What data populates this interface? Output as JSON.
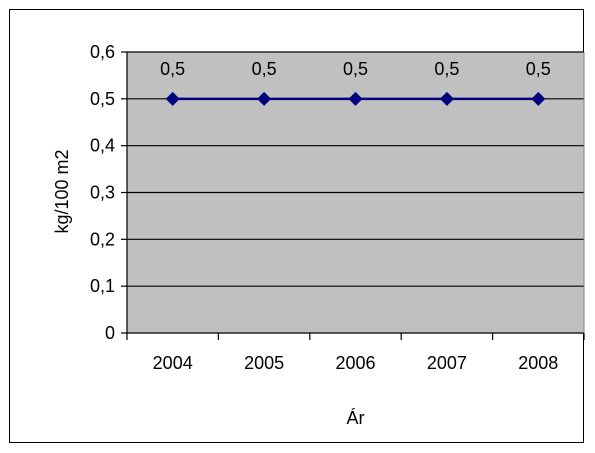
{
  "chart_data": {
    "type": "line",
    "title": "",
    "xlabel": "Ár",
    "ylabel": "kg/100 m2",
    "categories": [
      "2004",
      "2005",
      "2006",
      "2007",
      "2008"
    ],
    "series": [
      {
        "values": [
          0.5,
          0.5,
          0.5,
          0.5,
          0.5
        ]
      }
    ],
    "data_labels": [
      "0,5",
      "0,5",
      "0,5",
      "0,5",
      "0,5"
    ],
    "y_ticks": [
      "0",
      "0,1",
      "0,2",
      "0,3",
      "0,4",
      "0,5",
      "0,6"
    ],
    "ylim": [
      0,
      0.6
    ],
    "grid": true,
    "legend": "none",
    "colors": {
      "plot_background": "#c0c0c0",
      "line": "#000080",
      "marker": "#000080",
      "gridline": "#000000"
    }
  }
}
